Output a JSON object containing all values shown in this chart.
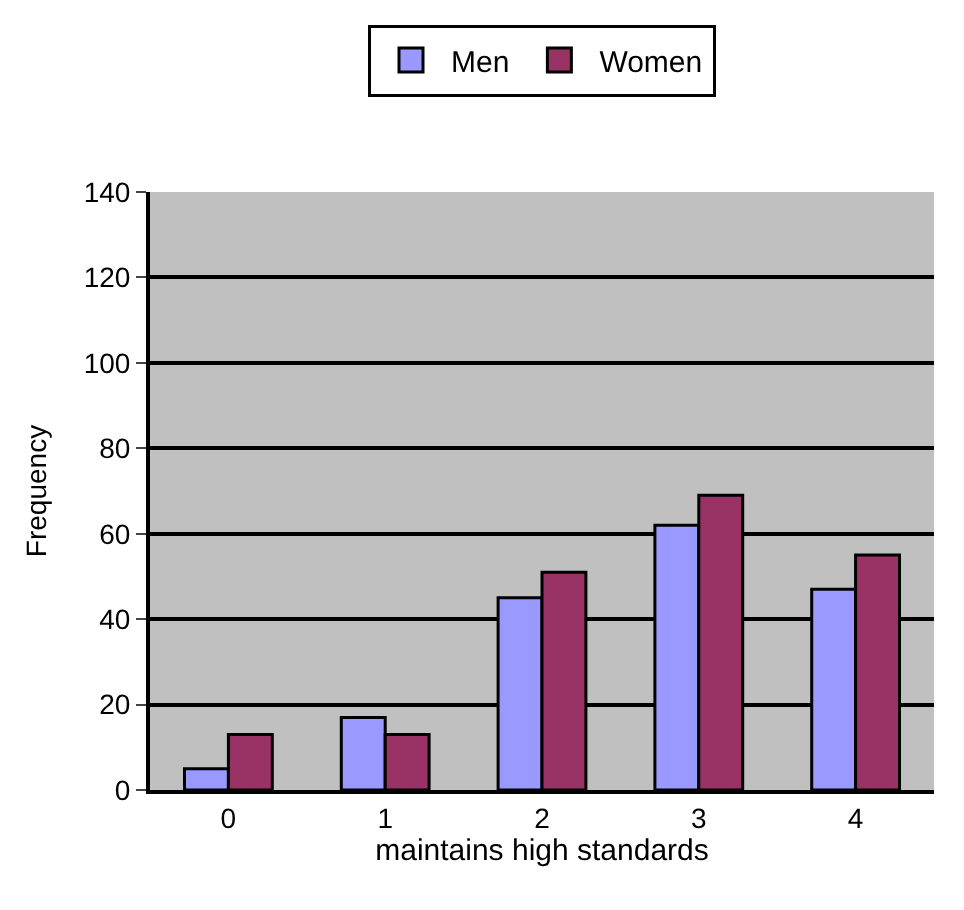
{
  "chart_data": {
    "type": "bar",
    "xlabel": "maintains high standards",
    "ylabel": "Frequency",
    "categories": [
      "0",
      "1",
      "2",
      "3",
      "4"
    ],
    "series": [
      {
        "name": "Men",
        "color": "#9999ff",
        "values": [
          5,
          17,
          45,
          62,
          47
        ]
      },
      {
        "name": "Women",
        "color": "#993366",
        "values": [
          13,
          13,
          51,
          69,
          55
        ]
      }
    ],
    "ylim": [
      0,
      140
    ],
    "yticks": [
      0,
      20,
      40,
      60,
      80,
      100,
      120,
      140
    ],
    "grid": "y",
    "legend": "top"
  }
}
